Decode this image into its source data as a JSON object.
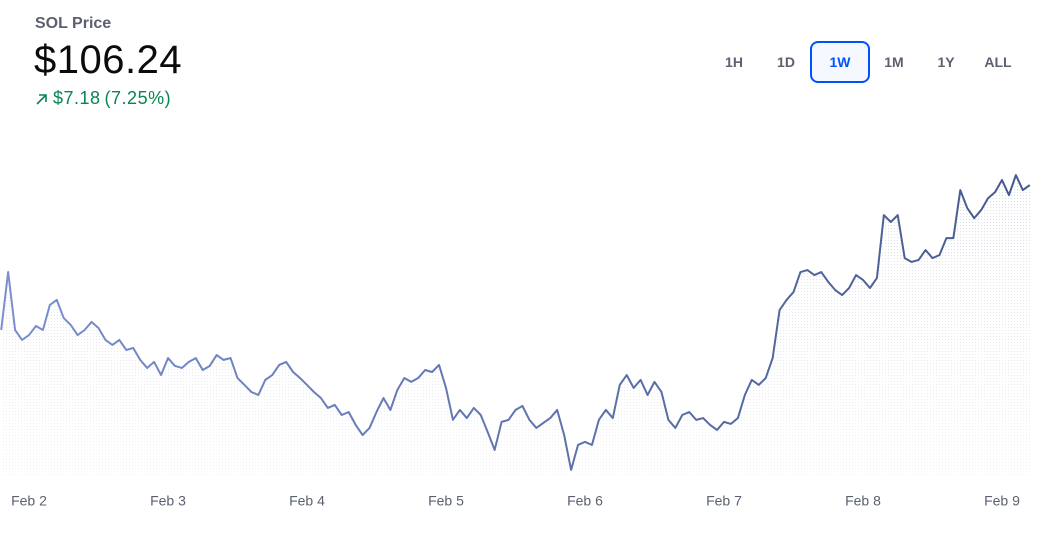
{
  "header": {
    "title": "SOL Price",
    "price": "$106.24",
    "change": "$7.18",
    "change_percent": "(7.25%)"
  },
  "ranges": [
    "1H",
    "1D",
    "1W",
    "1M",
    "1Y",
    "ALL"
  ],
  "selected_range_index": 2,
  "chart_data": {
    "type": "line",
    "color": "#5a6fb0",
    "values": [
      99.06,
      101.93,
      99.06,
      98.57,
      98.81,
      99.26,
      99.06,
      100.3,
      100.55,
      99.65,
      99.31,
      98.81,
      99.06,
      99.46,
      99.16,
      98.57,
      98.32,
      98.57,
      98.07,
      98.17,
      97.58,
      97.18,
      97.48,
      96.83,
      97.67,
      97.28,
      97.18,
      97.48,
      97.67,
      97.08,
      97.28,
      97.82,
      97.58,
      97.67,
      96.68,
      96.34,
      95.99,
      95.84,
      96.59,
      96.83,
      97.33,
      97.48,
      96.98,
      96.68,
      96.34,
      95.99,
      95.69,
      95.2,
      95.35,
      94.85,
      95.0,
      94.36,
      93.86,
      94.21,
      95.0,
      95.69,
      95.1,
      96.09,
      96.68,
      96.49,
      96.68,
      97.08,
      96.98,
      97.33,
      96.19,
      94.61,
      95.1,
      94.7,
      95.2,
      94.85,
      94.01,
      93.12,
      94.51,
      94.61,
      95.1,
      95.3,
      94.61,
      94.21,
      94.46,
      94.7,
      95.1,
      93.86,
      92.13,
      93.37,
      93.52,
      93.37,
      94.61,
      95.1,
      94.7,
      96.34,
      96.83,
      96.19,
      96.59,
      95.84,
      96.49,
      95.99,
      94.61,
      94.21,
      94.85,
      95.0,
      94.61,
      94.7,
      94.36,
      94.11,
      94.51,
      94.41,
      94.7,
      95.84,
      96.59,
      96.34,
      96.68,
      97.67,
      100.05,
      100.55,
      100.94,
      101.93,
      102.03,
      101.78,
      101.93,
      101.44,
      101.04,
      100.79,
      101.14,
      101.78,
      101.54,
      101.14,
      101.63,
      104.75,
      104.41,
      104.75,
      102.62,
      102.43,
      102.53,
      103.02,
      102.62,
      102.77,
      103.61,
      103.61,
      105.99,
      105.1,
      104.6,
      105.0,
      105.59,
      105.89,
      106.49,
      105.74,
      106.73,
      105.99,
      106.24
    ],
    "xlim": [
      0,
      148
    ],
    "xticks": [
      {
        "value": 4,
        "label": "Feb 2"
      },
      {
        "value": 24,
        "label": "Feb 3"
      },
      {
        "value": 44,
        "label": "Feb 4"
      },
      {
        "value": 64,
        "label": "Feb 5"
      },
      {
        "value": 84,
        "label": "Feb 6"
      },
      {
        "value": 104,
        "label": "Feb 7"
      },
      {
        "value": 124,
        "label": "Feb 8"
      },
      {
        "value": 144,
        "label": "Feb 9"
      }
    ],
    "ylim": [
      91.78,
      108.47
    ]
  }
}
